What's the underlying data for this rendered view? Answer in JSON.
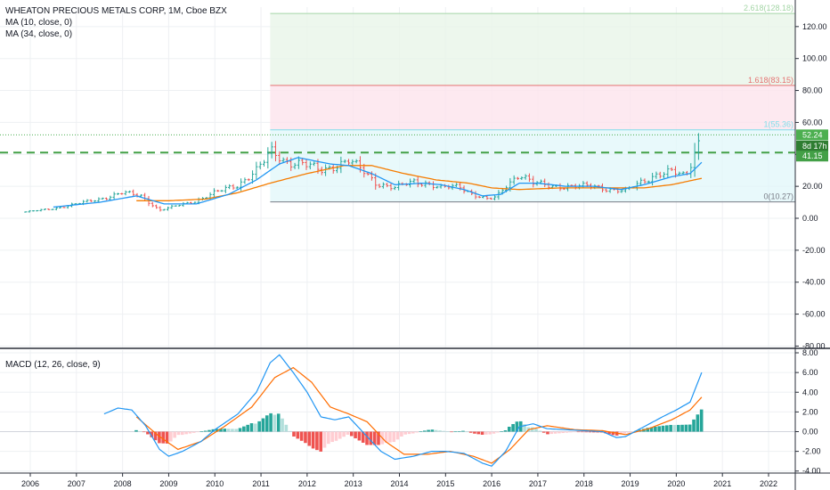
{
  "legend": {
    "title": "WHEATON PRECIOUS METALS CORP, 1M, Cboe BZX",
    "ma1": "MA (10, close, 0)",
    "ma2": "MA (34, close, 0)",
    "macd": "MACD (12, 26, close, 9)"
  },
  "colors": {
    "up": "#26a69a",
    "down": "#ef5350",
    "ma10": "#2196f3",
    "ma34": "#f57c00",
    "macd": "#2196f3",
    "signal": "#ff6d00",
    "dashed": "#43a047",
    "hist_up_strong": "#26a69a",
    "hist_up_weak": "#b2dfdb",
    "hist_down_strong": "#ef5350",
    "hist_down_weak": "#ffcdd2",
    "badge_price": "#4caf50",
    "badge_timer": "#2e7d32",
    "badge_level": "#43a047"
  },
  "badges": {
    "price": "52.24",
    "timer": "8d 17h",
    "level": "41.15"
  },
  "fib_labels": [
    {
      "text": "2.618(128.18)",
      "value": 128.18
    },
    {
      "text": "1.618(83.15)",
      "value": 83.15
    },
    {
      "text": "1(55.36)",
      "value": 55.36
    },
    {
      "text": "0(10.27)",
      "value": 10.27
    }
  ],
  "chart_data": [
    {
      "type": "candlestick",
      "title": "WHEATON PRECIOUS METALS CORP, 1M, Cboe BZX",
      "x_ticks": [
        "2006",
        "2007",
        "2008",
        "2009",
        "2010",
        "2011",
        "2012",
        "2013",
        "2014",
        "2015",
        "2016",
        "2017",
        "2018",
        "2019",
        "2020",
        "2021",
        "2022"
      ],
      "y_ticks": [
        120,
        100,
        80,
        60,
        40,
        20,
        0,
        -20,
        -40,
        -60,
        -80
      ],
      "y_tick_labels": [
        "120.00",
        "100.00",
        "80.00",
        "60.00",
        "40.00",
        "20.00",
        "0.00",
        "-20.00",
        "-40.00",
        "-60.00",
        "-80.00"
      ],
      "ylim": [
        -80,
        135
      ],
      "horizontal_dashed_level": 41.15,
      "last_price": 52.24,
      "fib_levels": [
        10.27,
        55.36,
        83.15,
        128.18
      ],
      "price_anchors": [
        [
          2005.9,
          4
        ],
        [
          2006.5,
          6
        ],
        [
          2007.0,
          9
        ],
        [
          2007.5,
          12
        ],
        [
          2008.0,
          16
        ],
        [
          2008.4,
          14
        ],
        [
          2008.8,
          5
        ],
        [
          2009.2,
          8
        ],
        [
          2009.6,
          11
        ],
        [
          2010.0,
          16
        ],
        [
          2010.5,
          21
        ],
        [
          2010.9,
          30
        ],
        [
          2011.25,
          42
        ],
        [
          2011.5,
          36
        ],
        [
          2011.9,
          34
        ],
        [
          2012.3,
          30
        ],
        [
          2012.6,
          33
        ],
        [
          2012.9,
          36
        ],
        [
          2013.2,
          30
        ],
        [
          2013.5,
          22
        ],
        [
          2013.9,
          19
        ],
        [
          2014.3,
          23
        ],
        [
          2014.6,
          22
        ],
        [
          2014.9,
          19
        ],
        [
          2015.3,
          20
        ],
        [
          2015.6,
          15
        ],
        [
          2015.9,
          12
        ],
        [
          2016.1,
          13
        ],
        [
          2016.3,
          20
        ],
        [
          2016.6,
          28
        ],
        [
          2016.9,
          22
        ],
        [
          2017.3,
          20
        ],
        [
          2017.7,
          20
        ],
        [
          2018.2,
          20
        ],
        [
          2018.6,
          18
        ],
        [
          2018.9,
          17
        ],
        [
          2019.2,
          22
        ],
        [
          2019.6,
          28
        ],
        [
          2019.9,
          29
        ],
        [
          2020.2,
          26
        ],
        [
          2020.3,
          33
        ],
        [
          2020.45,
          46
        ],
        [
          2020.55,
          52.24
        ]
      ],
      "ma10_anchors": [
        [
          2006.5,
          7
        ],
        [
          2007.5,
          10
        ],
        [
          2008.3,
          14
        ],
        [
          2008.9,
          9
        ],
        [
          2009.6,
          9
        ],
        [
          2010.3,
          15
        ],
        [
          2010.9,
          24
        ],
        [
          2011.4,
          34
        ],
        [
          2011.8,
          38
        ],
        [
          2012.5,
          34
        ],
        [
          2012.9,
          33
        ],
        [
          2013.4,
          28
        ],
        [
          2013.9,
          21
        ],
        [
          2014.5,
          22
        ],
        [
          2014.9,
          21
        ],
        [
          2015.4,
          18
        ],
        [
          2015.8,
          14
        ],
        [
          2016.2,
          15
        ],
        [
          2016.6,
          22
        ],
        [
          2017.0,
          22
        ],
        [
          2017.6,
          20
        ],
        [
          2018.2,
          20
        ],
        [
          2018.8,
          18
        ],
        [
          2019.3,
          21
        ],
        [
          2019.9,
          26
        ],
        [
          2020.3,
          28
        ],
        [
          2020.55,
          35
        ]
      ],
      "ma34_anchors": [
        [
          2008.3,
          11
        ],
        [
          2009.0,
          11
        ],
        [
          2009.8,
          12
        ],
        [
          2010.5,
          16
        ],
        [
          2011.2,
          22
        ],
        [
          2012.0,
          28
        ],
        [
          2012.8,
          33
        ],
        [
          2013.4,
          33
        ],
        [
          2014.1,
          28
        ],
        [
          2014.8,
          24
        ],
        [
          2015.5,
          22
        ],
        [
          2016.0,
          19
        ],
        [
          2016.6,
          18
        ],
        [
          2017.5,
          19
        ],
        [
          2018.5,
          19
        ],
        [
          2019.3,
          19
        ],
        [
          2019.9,
          21
        ],
        [
          2020.55,
          25
        ]
      ]
    },
    {
      "type": "bar",
      "title": "MACD (12, 26, close, 9)",
      "ylim": [
        -4.3,
        8.3
      ],
      "y_ticks": [
        8,
        6,
        4,
        2,
        0,
        -2,
        -4
      ],
      "y_tick_labels": [
        "8.00",
        "6.00",
        "4.00",
        "2.00",
        "0.00",
        "-2.00",
        "-4.00"
      ],
      "macd_anchors": [
        [
          2007.6,
          1.8
        ],
        [
          2007.9,
          2.4
        ],
        [
          2008.2,
          2.2
        ],
        [
          2008.5,
          0.6
        ],
        [
          2008.8,
          -1.8
        ],
        [
          2009.0,
          -2.5
        ],
        [
          2009.3,
          -2.0
        ],
        [
          2009.7,
          -1.0
        ],
        [
          2010.0,
          0.2
        ],
        [
          2010.5,
          1.8
        ],
        [
          2010.9,
          4.0
        ],
        [
          2011.2,
          7.0
        ],
        [
          2011.4,
          7.8
        ],
        [
          2011.7,
          6.0
        ],
        [
          2012.0,
          4.0
        ],
        [
          2012.3,
          1.5
        ],
        [
          2012.6,
          1.2
        ],
        [
          2012.9,
          1.5
        ],
        [
          2013.2,
          0.0
        ],
        [
          2013.6,
          -2.0
        ],
        [
          2013.9,
          -2.8
        ],
        [
          2014.3,
          -2.5
        ],
        [
          2014.7,
          -2.0
        ],
        [
          2015.0,
          -2.0
        ],
        [
          2015.4,
          -2.2
        ],
        [
          2015.8,
          -3.2
        ],
        [
          2016.0,
          -3.5
        ],
        [
          2016.3,
          -2.0
        ],
        [
          2016.6,
          0.5
        ],
        [
          2016.9,
          0.8
        ],
        [
          2017.2,
          0.3
        ],
        [
          2017.6,
          0.2
        ],
        [
          2018.0,
          0.1
        ],
        [
          2018.4,
          0.0
        ],
        [
          2018.7,
          -0.6
        ],
        [
          2018.9,
          -0.5
        ],
        [
          2019.3,
          0.5
        ],
        [
          2019.7,
          1.5
        ],
        [
          2020.0,
          2.2
        ],
        [
          2020.3,
          3.0
        ],
        [
          2020.55,
          6.0
        ]
      ],
      "signal_anchors": [
        [
          2008.3,
          1.5
        ],
        [
          2008.8,
          -0.5
        ],
        [
          2009.2,
          -1.8
        ],
        [
          2009.7,
          -1.0
        ],
        [
          2010.2,
          0.5
        ],
        [
          2010.8,
          2.5
        ],
        [
          2011.3,
          5.5
        ],
        [
          2011.7,
          6.5
        ],
        [
          2012.1,
          5.0
        ],
        [
          2012.5,
          2.5
        ],
        [
          2012.9,
          1.8
        ],
        [
          2013.3,
          1.0
        ],
        [
          2013.7,
          -1.0
        ],
        [
          2014.1,
          -2.3
        ],
        [
          2014.6,
          -2.3
        ],
        [
          2015.1,
          -2.0
        ],
        [
          2015.6,
          -2.5
        ],
        [
          2016.0,
          -3.2
        ],
        [
          2016.4,
          -1.8
        ],
        [
          2016.8,
          0.2
        ],
        [
          2017.2,
          0.6
        ],
        [
          2017.8,
          0.2
        ],
        [
          2018.4,
          0.1
        ],
        [
          2018.9,
          -0.3
        ],
        [
          2019.4,
          0.3
        ],
        [
          2019.9,
          1.2
        ],
        [
          2020.3,
          2.2
        ],
        [
          2020.55,
          3.5
        ]
      ]
    }
  ]
}
